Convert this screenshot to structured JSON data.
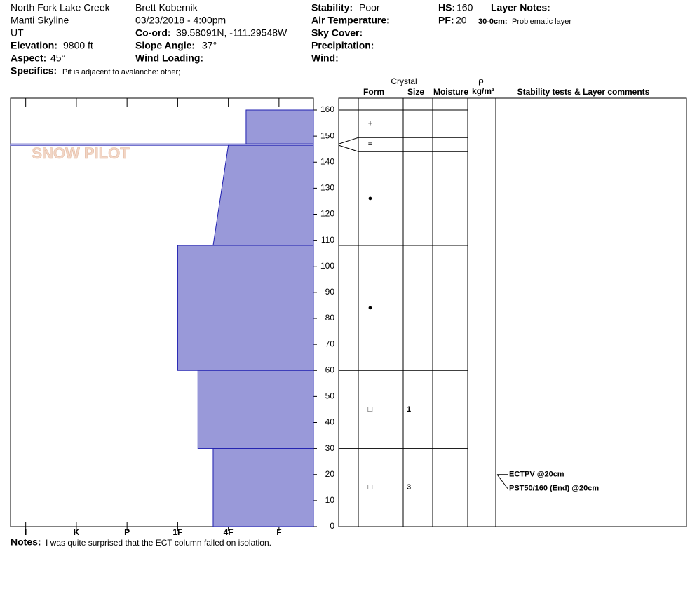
{
  "header": {
    "location": "North Fork Lake Creek",
    "range": "Manti Skyline",
    "state": "UT",
    "elevation_label": "Elevation:",
    "elevation": "9800 ft",
    "aspect_label": "Aspect:",
    "aspect": "45°",
    "specifics_label": "Specifics:",
    "specifics": "Pit is adjacent to avalanche: other;",
    "observer": "Brett Kobernik",
    "datetime": "03/23/2018 - 4:00pm",
    "coord_label": "Co-ord:",
    "coord": "39.58091N, -111.29548W",
    "slope_label": "Slope Angle:",
    "slope": "37°",
    "wind_loading_label": "Wind Loading:",
    "stability_label": "Stability:",
    "stability": "Poor",
    "air_temp_label": "Air Temperature:",
    "sky_label": "Sky Cover:",
    "precip_label": "Precipitation:",
    "wind_label": "Wind:",
    "hs_label": "HS:",
    "hs": 160,
    "pf_label": "PF:",
    "pf": 20,
    "layer_notes_label": "Layer Notes:",
    "layer_note_range": "30-0cm:",
    "layer_note": "Problematic layer",
    "notes_label": "Notes:",
    "notes": "I was quite surprised that the ECT column failed on isolation.",
    "watermark": "SNOW PILOT"
  },
  "chart_data": {
    "type": "snow-profile",
    "ylim": [
      0,
      160
    ],
    "yticks": [
      0,
      10,
      20,
      30,
      40,
      50,
      60,
      70,
      80,
      90,
      100,
      110,
      120,
      130,
      140,
      150,
      160
    ],
    "xlim": [
      6.3,
      0.32
    ],
    "xticks": [
      {
        "value": 6,
        "label": "I"
      },
      {
        "value": 5,
        "label": "K"
      },
      {
        "value": 4,
        "label": "P"
      },
      {
        "value": 3,
        "label": "1F"
      },
      {
        "value": 2,
        "label": "4F"
      },
      {
        "value": 1,
        "label": "F"
      }
    ],
    "color": "#9999d9",
    "edge_color": "#2020b0",
    "columns": {
      "crystal": "Crystal",
      "form": "Form",
      "size": "Size",
      "moisture": "Moisture",
      "rho": "ρ",
      "density_unit": "kg/m³",
      "comments": "Stability tests & Layer comments"
    },
    "layers": [
      {
        "top": 160,
        "bottom": 147,
        "hardness_top": 1.65,
        "hardness_bottom": 1.65,
        "form": "+"
      },
      {
        "top": 147,
        "bottom": 146.5,
        "hardness_top": 6.3,
        "hardness_bottom": 6.3,
        "form": "="
      },
      {
        "top": 146.5,
        "bottom": 108,
        "hardness_top": 2.0,
        "hardness_bottom": 2.3,
        "form": "●"
      },
      {
        "top": 108,
        "bottom": 60,
        "hardness_top": 3,
        "hardness_bottom": 3,
        "form": "●"
      },
      {
        "top": 60,
        "bottom": 30,
        "hardness_top": 2.6,
        "hardness_bottom": 2.6,
        "form": "□",
        "size": "1"
      },
      {
        "top": 30,
        "bottom": 0,
        "hardness_top": 2.3,
        "hardness_bottom": 2.3,
        "form": "□",
        "size": "3"
      }
    ],
    "stability_tests": [
      {
        "label": "ECTPV @20cm",
        "height": 20
      },
      {
        "label": "PST50/160 (End) @20cm",
        "height": 20
      }
    ]
  }
}
